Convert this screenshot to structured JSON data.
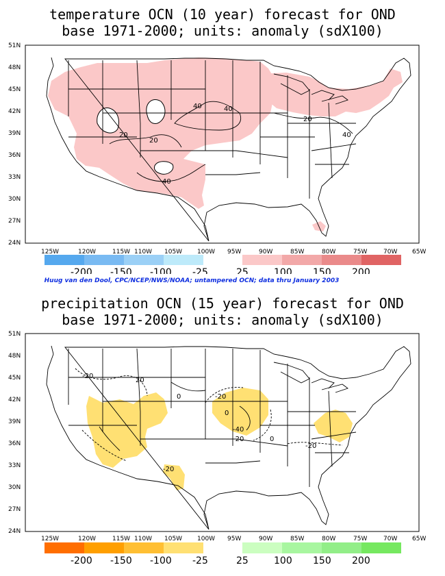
{
  "top_map": {
    "title_line1": "temperature OCN (10 year) forecast for OND",
    "title_line2": "base 1971-2000; units: anomaly (sdX100)",
    "lat_labels": [
      "51N",
      "48N",
      "45N",
      "42N",
      "39N",
      "36N",
      "33N",
      "30N",
      "27N",
      "24N"
    ],
    "lon_labels": [
      "125W",
      "120W",
      "115W",
      "110W",
      "105W",
      "100W",
      "95W",
      "90W",
      "85W",
      "80W",
      "75W",
      "70W",
      "65W"
    ],
    "contour_labels": [
      "40",
      "40",
      "20",
      "20",
      "20",
      "40",
      "40"
    ],
    "colorbar": {
      "negative_ticks": [
        "-200",
        "-150",
        "-100",
        "-25"
      ],
      "positive_ticks": [
        "25",
        "100",
        "150",
        "200"
      ],
      "negative_colors": [
        "#55a8ee",
        "#79baf2",
        "#9bd0f6",
        "#bdeafa"
      ],
      "positive_colors": [
        "#fbc8c8",
        "#f2a8a8",
        "#ea8a8a",
        "#e06464"
      ]
    }
  },
  "credit": "Huug van den Dool, CPC/NCEP/NWS/NOAA; untampered OCN; data thru January 2003",
  "bottom_map": {
    "title_line1": "precipitation OCN (15 year) forecast for OND",
    "title_line2": "base 1971-2000; units: anomaly (sdX100)",
    "lat_labels": [
      "51N",
      "48N",
      "45N",
      "42N",
      "39N",
      "36N",
      "33N",
      "30N",
      "27N",
      "24N"
    ],
    "lon_labels": [
      "125W",
      "120W",
      "115W",
      "110W",
      "105W",
      "100W",
      "95W",
      "90W",
      "85W",
      "80W",
      "75W",
      "70W",
      "65W"
    ],
    "contour_labels": [
      "-20",
      "20",
      "0",
      "-20",
      "0",
      "-40",
      "-20",
      "0",
      "-20",
      "-20"
    ],
    "colorbar": {
      "negative_ticks": [
        "-200",
        "-150",
        "-100",
        "-25"
      ],
      "positive_ticks": [
        "25",
        "100",
        "150",
        "200"
      ],
      "negative_colors": [
        "#ff6e00",
        "#ff9f00",
        "#ffbf33",
        "#ffe073"
      ],
      "positive_colors": [
        "#cbfec0",
        "#a8f6a0",
        "#92ee88",
        "#76e860"
      ]
    }
  }
}
